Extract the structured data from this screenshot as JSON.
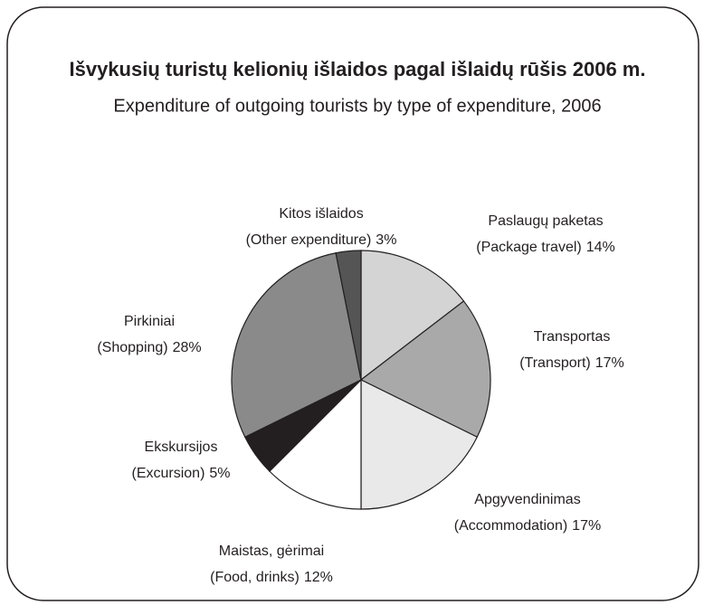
{
  "chart_data": {
    "type": "pie",
    "title": "Išvykusių turistų kelionių išlaidos pagal išlaidų rūšis 2006 m.",
    "subtitle": "Expenditure of outgoing tourists by type of expenditure, 2006",
    "categories": [
      "Paslaugų paketas",
      "Transportas",
      "Apgyvendinimas",
      "Maistas, gėrimai",
      "Ekskursijos",
      "Pirkiniai",
      "Kitos išlaidos"
    ],
    "categories_en": [
      "(Package travel)",
      "(Transport)",
      "(Accommodation)",
      "(Food, drinks)",
      "(Excursion)",
      "(Shopping)",
      "(Other expenditure)"
    ],
    "values": [
      14,
      17,
      17,
      12,
      5,
      28,
      3
    ],
    "value_labels": [
      "14%",
      "17%",
      "17%",
      "12%",
      "5%",
      "28%",
      "3%"
    ],
    "colors": [
      "#d4d4d4",
      "#a9a9a9",
      "#e9e9e9",
      "#ffffff",
      "#231f20",
      "#8a8a8a",
      "#555555"
    ]
  }
}
